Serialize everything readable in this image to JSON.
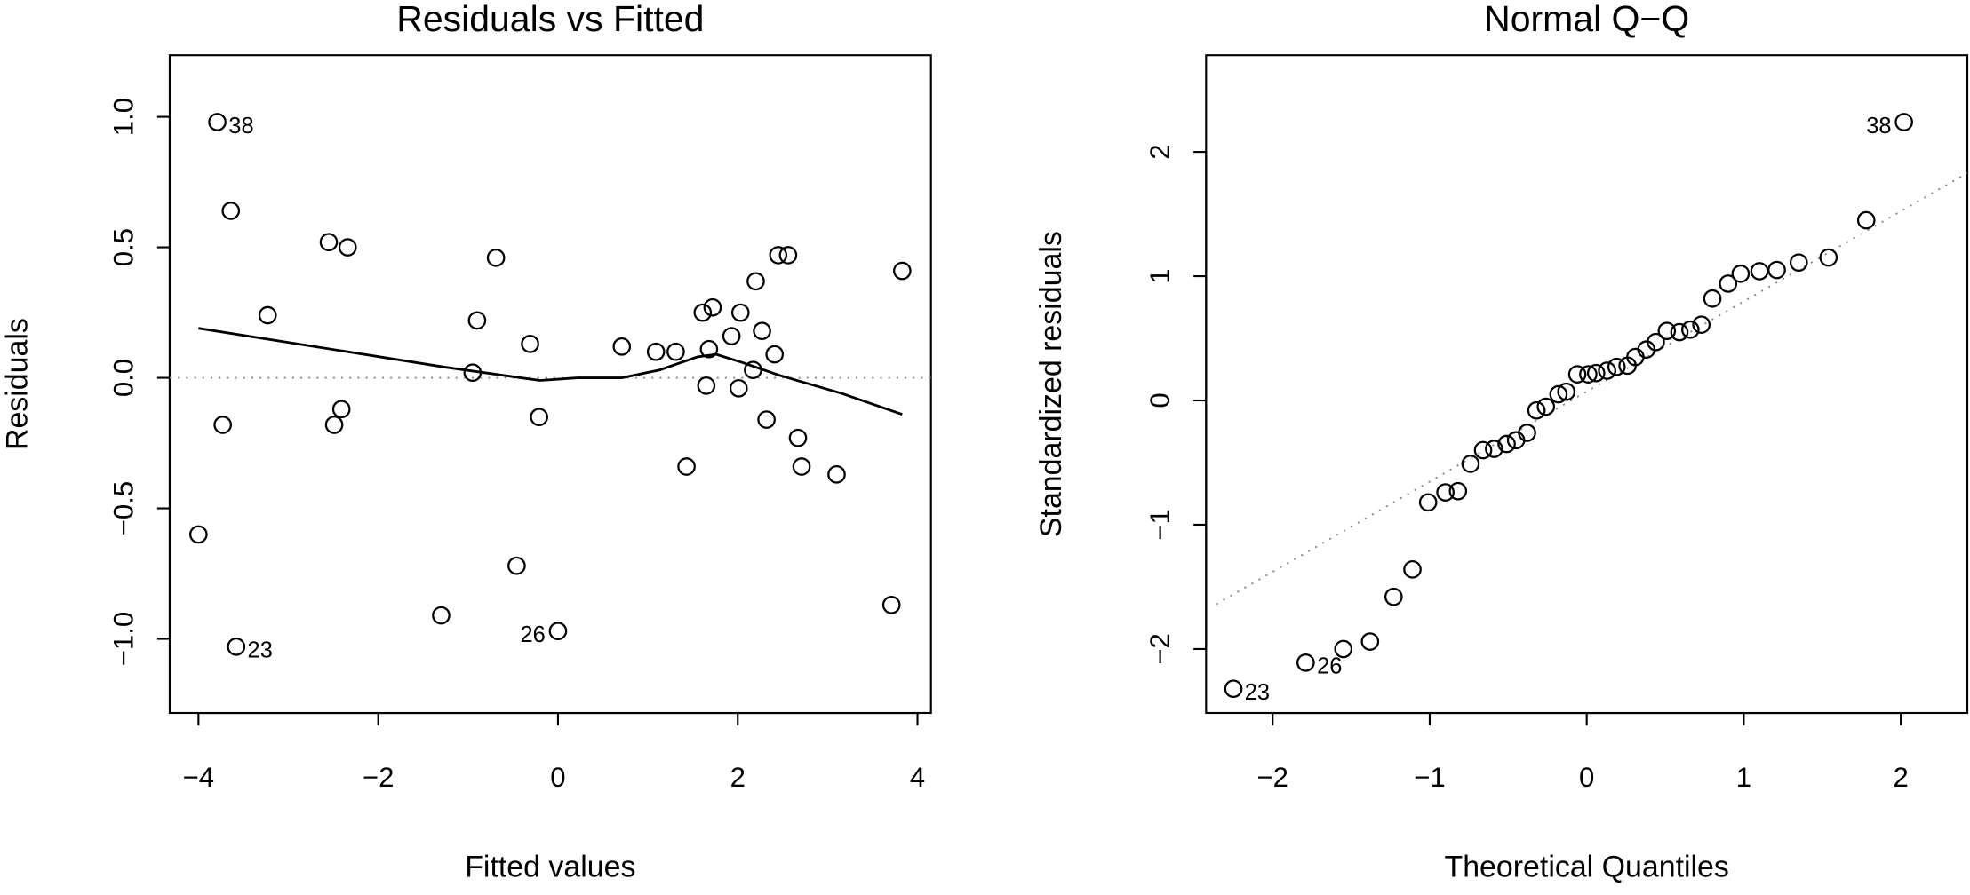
{
  "chart_data": [
    {
      "type": "scatter",
      "title": "Residuals vs Fitted",
      "x_label": "Fitted values",
      "y_label": "Residuals",
      "x": [
        -3.79,
        -3.64,
        -3.23,
        -2.55,
        -2.34,
        -0.69,
        -0.9,
        -0.95,
        -0.31,
        -3.73,
        -2.41,
        -2.49,
        -0.21,
        -4.0,
        -0.46,
        -1.3,
        -3.58,
        0.0,
        0.71,
        1.09,
        1.31,
        1.43,
        1.61,
        1.72,
        1.68,
        1.65,
        1.93,
        2.03,
        2.01,
        2.2,
        2.17,
        2.27,
        2.41,
        2.32,
        2.45,
        2.56,
        2.67,
        2.71,
        3.1,
        3.71,
        3.83
      ],
      "values": [
        0.98,
        0.64,
        0.24,
        0.52,
        0.5,
        0.46,
        0.22,
        0.02,
        0.13,
        -0.18,
        -0.12,
        -0.18,
        -0.15,
        -0.6,
        -0.72,
        -0.91,
        -1.03,
        -0.97,
        0.12,
        0.1,
        0.1,
        -0.34,
        0.25,
        0.27,
        0.11,
        -0.03,
        0.16,
        0.25,
        -0.04,
        0.37,
        0.03,
        0.18,
        0.09,
        -0.16,
        0.47,
        0.47,
        -0.23,
        -0.34,
        -0.37,
        -0.87,
        0.41
      ],
      "point_labels": [
        "38",
        null,
        null,
        null,
        null,
        null,
        null,
        null,
        null,
        null,
        null,
        null,
        null,
        null,
        null,
        null,
        "23",
        "26",
        null,
        null,
        null,
        null,
        null,
        null,
        null,
        null,
        null,
        null,
        null,
        null,
        null,
        null,
        null,
        null,
        null,
        null,
        null,
        null,
        null,
        null,
        null
      ],
      "smooth": {
        "x": [
          -4.0,
          -1.24,
          -0.41,
          -0.2,
          0.22,
          0.71,
          1.13,
          1.55,
          1.76,
          2.04,
          2.46,
          3.16,
          3.83
        ],
        "values": [
          0.19,
          0.04,
          0.0,
          -0.01,
          0.0,
          0.0,
          0.03,
          0.08,
          0.09,
          0.06,
          0.01,
          -0.06,
          -0.14
        ]
      },
      "reference_line": {
        "x": [
          -4.32,
          4.15
        ],
        "values": [
          0,
          0
        ]
      },
      "xlim": [
        -4.32,
        4.15
      ],
      "ylim": [
        -1.284,
        1.236
      ],
      "xticks": [
        {
          "value": -4,
          "label": "−4"
        },
        {
          "value": -2,
          "label": "−2"
        },
        0,
        2,
        4
      ],
      "yticks": [
        {
          "value": -1,
          "label": "−1.0"
        },
        {
          "value": -0.5,
          "label": "−0.5"
        },
        {
          "value": 0,
          "label": "0.0"
        },
        0.5,
        {
          "value": 1,
          "label": "1.0"
        }
      ]
    },
    {
      "type": "scatter",
      "title": "Normal Q−Q",
      "x_label": "Theoretical Quantiles",
      "y_label": "Standardized residuals",
      "x": [
        -2.25,
        -1.79,
        -1.55,
        -1.38,
        -1.23,
        -1.11,
        -1.01,
        -0.9,
        -0.82,
        -0.74,
        -0.66,
        -0.59,
        -0.51,
        -0.45,
        -0.38,
        -0.32,
        -0.26,
        -0.18,
        -0.13,
        -0.06,
        0.01,
        0.06,
        0.13,
        0.19,
        0.26,
        0.31,
        0.38,
        0.44,
        0.51,
        0.59,
        0.66,
        0.73,
        0.8,
        0.9,
        0.98,
        1.1,
        1.21,
        1.35,
        1.54,
        1.78,
        2.02
      ],
      "values": [
        -2.32,
        -2.11,
        -2.0,
        -1.94,
        -1.58,
        -1.36,
        -0.82,
        -0.74,
        -0.73,
        -0.51,
        -0.4,
        -0.39,
        -0.35,
        -0.32,
        -0.26,
        -0.08,
        -0.05,
        0.05,
        0.07,
        0.21,
        0.21,
        0.22,
        0.24,
        0.27,
        0.28,
        0.35,
        0.41,
        0.47,
        0.56,
        0.55,
        0.57,
        0.61,
        0.82,
        0.94,
        1.02,
        1.04,
        1.05,
        1.11,
        1.15,
        1.45,
        2.24
      ],
      "point_labels": [
        "23",
        "26",
        null,
        null,
        null,
        null,
        null,
        null,
        null,
        null,
        null,
        null,
        null,
        null,
        null,
        null,
        null,
        null,
        null,
        null,
        null,
        null,
        null,
        null,
        null,
        null,
        null,
        null,
        null,
        null,
        null,
        null,
        null,
        null,
        null,
        null,
        null,
        null,
        null,
        null,
        "38"
      ],
      "reference_line": {
        "x": [
          -2.36,
          2.424
        ],
        "values": [
          -1.64,
          1.83
        ]
      },
      "xlim": [
        -2.424,
        2.424
      ],
      "ylim": [
        -2.515,
        2.778
      ],
      "xticks": [
        {
          "value": -2,
          "label": "−2"
        },
        {
          "value": -1,
          "label": "−1"
        },
        0,
        1,
        2
      ],
      "yticks": [
        {
          "value": -2,
          "label": "−2"
        },
        {
          "value": -1,
          "label": "−1"
        },
        0,
        1,
        2
      ]
    }
  ]
}
